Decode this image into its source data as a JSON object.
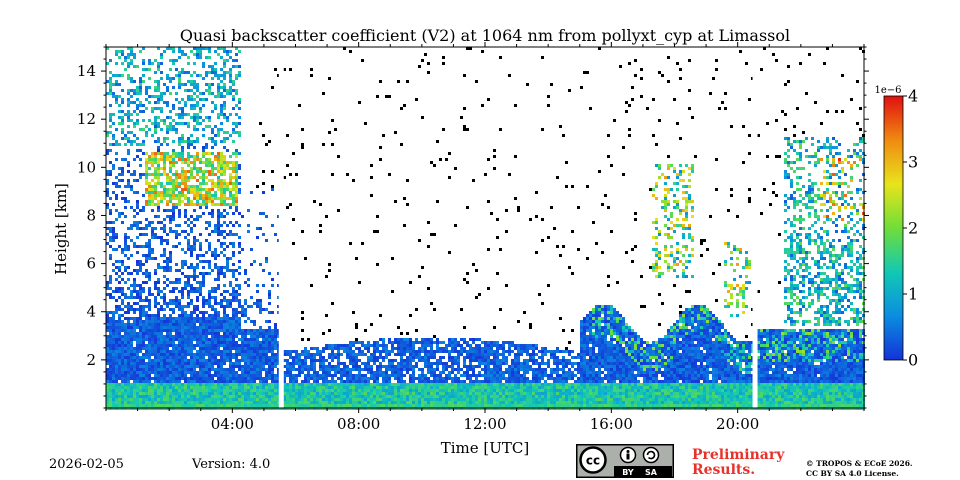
{
  "chart_data": {
    "type": "heatmap",
    "title": "Quasi backscatter coefficient (V2) at 1064 nm from pollyxt_cyp at Limassol",
    "xlabel": "Time [UTC]",
    "ylabel": "Height [km]",
    "xlim_hours": [
      0,
      24
    ],
    "ylim_km": [
      0,
      15
    ],
    "x_ticks": [
      {
        "hour": 4,
        "label": "04:00"
      },
      {
        "hour": 8,
        "label": "08:00"
      },
      {
        "hour": 12,
        "label": "12:00"
      },
      {
        "hour": 16,
        "label": "16:00"
      },
      {
        "hour": 20,
        "label": "20:00"
      }
    ],
    "y_ticks": [
      {
        "value": 2,
        "label": "2"
      },
      {
        "value": 4,
        "label": "4"
      },
      {
        "value": 6,
        "label": "6"
      },
      {
        "value": 8,
        "label": "8"
      },
      {
        "value": 10,
        "label": "10"
      },
      {
        "value": 12,
        "label": "12"
      },
      {
        "value": 14,
        "label": "14"
      }
    ],
    "colorbar": {
      "min": 0,
      "max": 4,
      "scale_label": "1e−6",
      "ticks": [
        {
          "value": 0,
          "label": "0"
        },
        {
          "value": 1,
          "label": "1"
        },
        {
          "value": 2,
          "label": "2"
        },
        {
          "value": 3,
          "label": "3"
        },
        {
          "value": 4,
          "label": "4"
        }
      ],
      "colors": [
        "#1432d8",
        "#0a8ee0",
        "#12c8b4",
        "#70de38",
        "#e8e41a",
        "#f08a12",
        "#e01010"
      ]
    },
    "data_gaps_hours": [
      5.55,
      20.55
    ]
  },
  "footer": {
    "date": "2026-02-05",
    "version": "Version: 4.0",
    "preliminary_line1": "Preliminary",
    "preliminary_line2": "Results.",
    "copyright_line1": "© TROPOS & ECoE 2026.",
    "copyright_line2": "CC BY SA 4.0 License.",
    "license_badge": {
      "cc": "cc",
      "by": "BY",
      "sa": "SA"
    }
  }
}
